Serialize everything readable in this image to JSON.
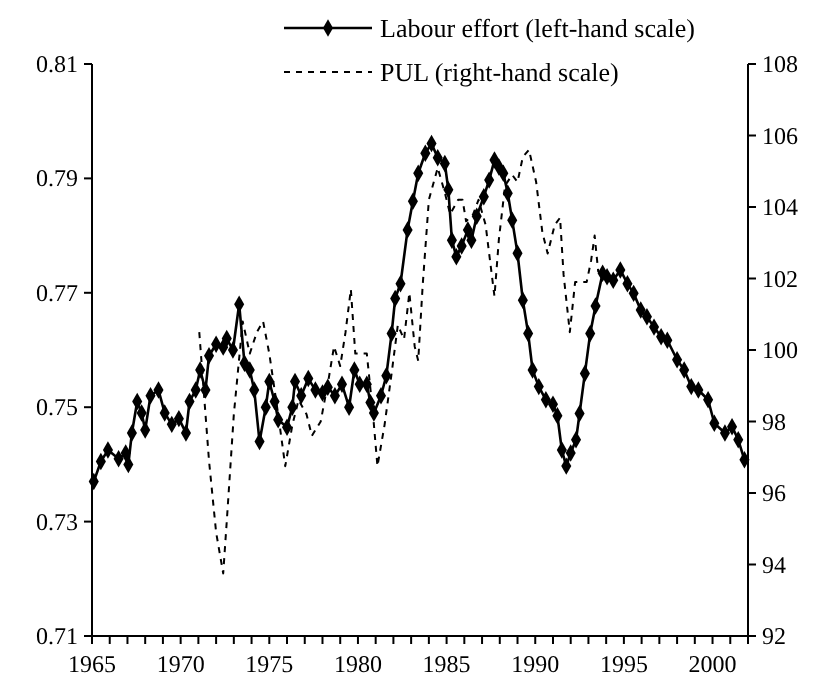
{
  "chart_data": {
    "type": "line",
    "legend": "top",
    "grid": false,
    "xlim": [
      1965,
      2002
    ],
    "xticks": [
      1965,
      {
        "value": 1966,
        "label": null
      },
      {
        "value": 1967,
        "label": null
      },
      {
        "value": 1968,
        "label": null
      },
      {
        "value": 1969,
        "label": null
      },
      1970,
      {
        "value": 1971,
        "label": null
      },
      {
        "value": 1972,
        "label": null
      },
      {
        "value": 1973,
        "label": null
      },
      {
        "value": 1974,
        "label": null
      },
      1975,
      {
        "value": 1976,
        "label": null
      },
      {
        "value": 1977,
        "label": null
      },
      {
        "value": 1978,
        "label": null
      },
      {
        "value": 1979,
        "label": null
      },
      1980,
      {
        "value": 1981,
        "label": null
      },
      {
        "value": 1982,
        "label": null
      },
      {
        "value": 1983,
        "label": null
      },
      {
        "value": 1984,
        "label": null
      },
      1985,
      {
        "value": 1986,
        "label": null
      },
      {
        "value": 1987,
        "label": null
      },
      {
        "value": 1988,
        "label": null
      },
      {
        "value": 1989,
        "label": null
      },
      1990,
      {
        "value": 1991,
        "label": null
      },
      {
        "value": 1992,
        "label": null
      },
      {
        "value": 1993,
        "label": null
      },
      {
        "value": 1994,
        "label": null
      },
      1995,
      {
        "value": 1996,
        "label": null
      },
      {
        "value": 1997,
        "label": null
      },
      {
        "value": 1998,
        "label": null
      },
      {
        "value": 1999,
        "label": null
      },
      2000,
      {
        "value": 2001,
        "label": null
      },
      {
        "value": 2002,
        "label": null
      }
    ],
    "ylim": [
      0.71,
      0.81
    ],
    "yticks": [
      0.71,
      0.73,
      0.75,
      0.77,
      0.79,
      0.81
    ],
    "y2lim": [
      92,
      108
    ],
    "y2ticks": [
      92,
      94,
      96,
      98,
      100,
      102,
      104,
      106,
      108
    ],
    "series": [
      {
        "name": "Labour effort (left-hand scale)",
        "color": "#000000",
        "marker": "diamond",
        "line_style": "solid",
        "x": [
          1965.1,
          1965.5,
          1965.9,
          1966.5,
          1966.9,
          1967.05,
          1967.25,
          1967.55,
          1967.8,
          1968,
          1968.3,
          1968.75,
          1969.1,
          1969.5,
          1969.9,
          1970.3,
          1970.5,
          1970.85,
          1971.1,
          1971.4,
          1971.6,
          1972,
          1972.4,
          1972.6,
          1972.95,
          1973.3,
          1973.6,
          1973.9,
          1974.15,
          1974.45,
          1974.8,
          1975,
          1975.3,
          1975.5,
          1976,
          1976.3,
          1976.45,
          1976.8,
          1977.2,
          1977.6,
          1978,
          1978.3,
          1978.7,
          1979.1,
          1979.5,
          1979.8,
          1980.1,
          1980.5,
          1980.7,
          1980.9,
          1981.3,
          1981.6,
          1981.9,
          1982.1,
          1982.4,
          1982.8,
          1983.1,
          1983.4,
          1983.8,
          1984.15,
          1984.5,
          1984.9,
          1985.1,
          1985.3,
          1985.55,
          1985.85,
          1986.2,
          1986.4,
          1986.7,
          1987.1,
          1987.4,
          1987.7,
          1987.95,
          1988.2,
          1988.45,
          1988.7,
          1989,
          1989.3,
          1989.6,
          1989.85,
          1990.2,
          1990.6,
          1991,
          1991.25,
          1991.5,
          1991.75,
          1992,
          1992.3,
          1992.5,
          1992.8,
          1993.1,
          1993.4,
          1993.8,
          1994.05,
          1994.4,
          1994.8,
          1995.2,
          1995.55,
          1995.95,
          1996.3,
          1996.7,
          1997.1,
          1997.45,
          1998,
          1998.4,
          1998.8,
          1999.2,
          1999.75,
          2000.1,
          2000.7,
          2001.1,
          2001.45,
          2001.8
        ],
        "values": [
          0.737,
          0.7405,
          0.7425,
          0.741,
          0.742,
          0.74,
          0.7455,
          0.751,
          0.749,
          0.746,
          0.752,
          0.753,
          0.749,
          0.747,
          0.748,
          0.7455,
          0.751,
          0.753,
          0.7565,
          0.753,
          0.759,
          0.761,
          0.7605,
          0.762,
          0.76,
          0.768,
          0.7577,
          0.7565,
          0.753,
          0.744,
          0.75,
          0.7545,
          0.751,
          0.7478,
          0.7465,
          0.75,
          0.7545,
          0.752,
          0.755,
          0.753,
          0.7525,
          0.7535,
          0.752,
          0.754,
          0.75,
          0.7565,
          0.754,
          0.754,
          0.7508,
          0.749,
          0.752,
          0.7555,
          0.7629,
          0.769,
          0.7716,
          0.781,
          0.786,
          0.7909,
          0.7944,
          0.7961,
          0.7936,
          0.7926,
          0.788,
          0.7792,
          0.7763,
          0.7782,
          0.781,
          0.7792,
          0.7834,
          0.7868,
          0.7897,
          0.7932,
          0.792,
          0.7909,
          0.7874,
          0.7827,
          0.7769,
          0.7687,
          0.7629,
          0.7565,
          0.7536,
          0.7513,
          0.7505,
          0.7485,
          0.7425,
          0.7397,
          0.742,
          0.7443,
          0.7489,
          0.7559,
          0.7629,
          0.7677,
          0.7734,
          0.7728,
          0.7722,
          0.774,
          0.7716,
          0.7699,
          0.767,
          0.7658,
          0.764,
          0.7623,
          0.7617,
          0.7583,
          0.7565,
          0.7536,
          0.753,
          0.7513,
          0.7472,
          0.7455,
          0.7466,
          0.7443,
          0.7408
        ]
      },
      {
        "name": "PUL (right-hand scale)",
        "color": "#000000",
        "marker": "none",
        "line_style": "dashed",
        "axis": "y2",
        "x": [
          1971.05,
          1971.6,
          1972,
          1972.4,
          1972.6,
          1973,
          1973.5,
          1973.9,
          1974.3,
          1974.65,
          1975,
          1975.5,
          1975.9,
          1976.3,
          1976.65,
          1977.1,
          1977.4,
          1977.9,
          1978.35,
          1978.65,
          1979,
          1979.3,
          1979.6,
          1979.85,
          1980.15,
          1980.5,
          1980.85,
          1981.1,
          1981.5,
          1981.9,
          1982.25,
          1982.6,
          1982.9,
          1983.2,
          1983.4,
          1983.65,
          1984,
          1984.5,
          1984.9,
          1985.2,
          1985.65,
          1985.9,
          1986.1,
          1986.5,
          1986.8,
          1987.2,
          1987.45,
          1987.7,
          1987.95,
          1988.3,
          1988.7,
          1989,
          1989.3,
          1989.65,
          1990.05,
          1990.4,
          1990.7,
          1991.1,
          1991.4,
          1991.6,
          1991.95,
          1992.25,
          1992.5,
          1992.9,
          1993.15,
          1993.35,
          1993.55,
          1993.75
        ],
        "values": [
          100.5,
          96.9,
          94.9,
          93.75,
          95.2,
          98.2,
          100.8,
          99.9,
          100.5,
          100.8,
          99.9,
          98.2,
          96.75,
          97.9,
          98.6,
          98.2,
          97.6,
          98,
          99.2,
          100.1,
          99.55,
          100.5,
          101.7,
          99.9,
          99.9,
          99.9,
          98.2,
          96.75,
          97.9,
          99.35,
          100.7,
          100.3,
          101.6,
          100.1,
          99.7,
          101.8,
          104.2,
          105.1,
          104.4,
          103.8,
          104.2,
          104.2,
          103.6,
          103.8,
          104.2,
          103.5,
          102.5,
          101.5,
          103.1,
          104.6,
          104.9,
          104.7,
          105.4,
          105.6,
          104.7,
          103.3,
          102.7,
          103.5,
          103.7,
          102.1,
          100.5,
          101.9,
          101.9,
          101.9,
          102.5,
          103.2,
          102.2,
          102.1
        ]
      }
    ]
  }
}
